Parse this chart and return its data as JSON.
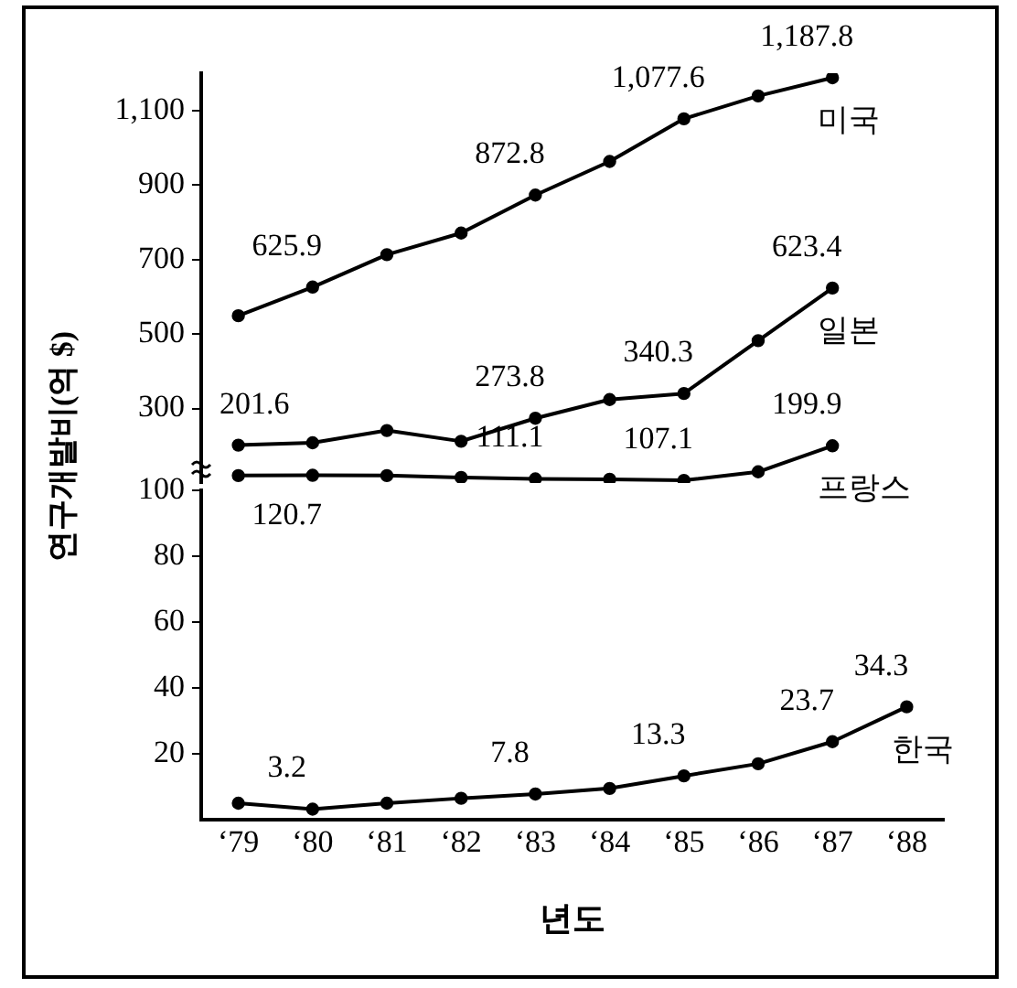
{
  "chart_data": [
    {
      "type": "line",
      "ylabel": "연구개발비(억 $)",
      "categories": [
        null,
        null,
        null,
        null,
        null,
        null,
        null,
        null,
        null,
        null
      ],
      "ylim": [
        100,
        1200
      ],
      "yticks": [
        300,
        500,
        700,
        900,
        {
          "value": 1100,
          "label": "1,100"
        }
      ],
      "tick_labels": "y",
      "marker": "circle",
      "grid": false,
      "series": [
        {
          "name": "미국",
          "color": "#000000",
          "values": [
            549,
            625.9,
            713,
            771,
            872.8,
            963,
            1077.6,
            1139,
            1187.8,
            null
          ],
          "value_labels": [
            null,
            "625.9",
            null,
            null,
            "872.8",
            null,
            "1,077.6",
            null,
            "1,187.8",
            null
          ]
        },
        {
          "name": "일본",
          "color": "#000000",
          "values": [
            201.6,
            208,
            241,
            212,
            273.8,
            324,
            340.3,
            482,
            623.4,
            null
          ],
          "value_labels": [
            "201.6",
            null,
            null,
            null,
            "273.8",
            null,
            "340.3",
            null,
            "623.4",
            null
          ]
        },
        {
          "name": "프랑스",
          "color": "#000000",
          "values": [
            120,
            120.7,
            120,
            115,
            111.1,
            110,
            107.1,
            130,
            199.9,
            null
          ],
          "value_labels": [
            null,
            "120.7",
            null,
            null,
            "111.1",
            null,
            "107.1",
            null,
            "199.9",
            null
          ]
        }
      ]
    },
    {
      "type": "line",
      "xlabel": "년도",
      "categories": [
        "‘79",
        "‘80",
        "‘81",
        "‘82",
        "‘83",
        "‘84",
        "‘85",
        "‘86",
        "‘87",
        "‘88"
      ],
      "ylim": [
        0,
        100
      ],
      "yticks": [
        20,
        40,
        60,
        80,
        100
      ],
      "marker": "circle",
      "grid": false,
      "series": [
        {
          "name": "한국",
          "color": "#000000",
          "values": [
            5,
            3.2,
            5,
            6.5,
            7.8,
            9.5,
            13.3,
            17,
            23.7,
            34.3
          ],
          "value_labels": [
            null,
            "3.2",
            null,
            null,
            "7.8",
            null,
            "13.3",
            null,
            "23.7",
            "34.3"
          ]
        }
      ]
    }
  ]
}
